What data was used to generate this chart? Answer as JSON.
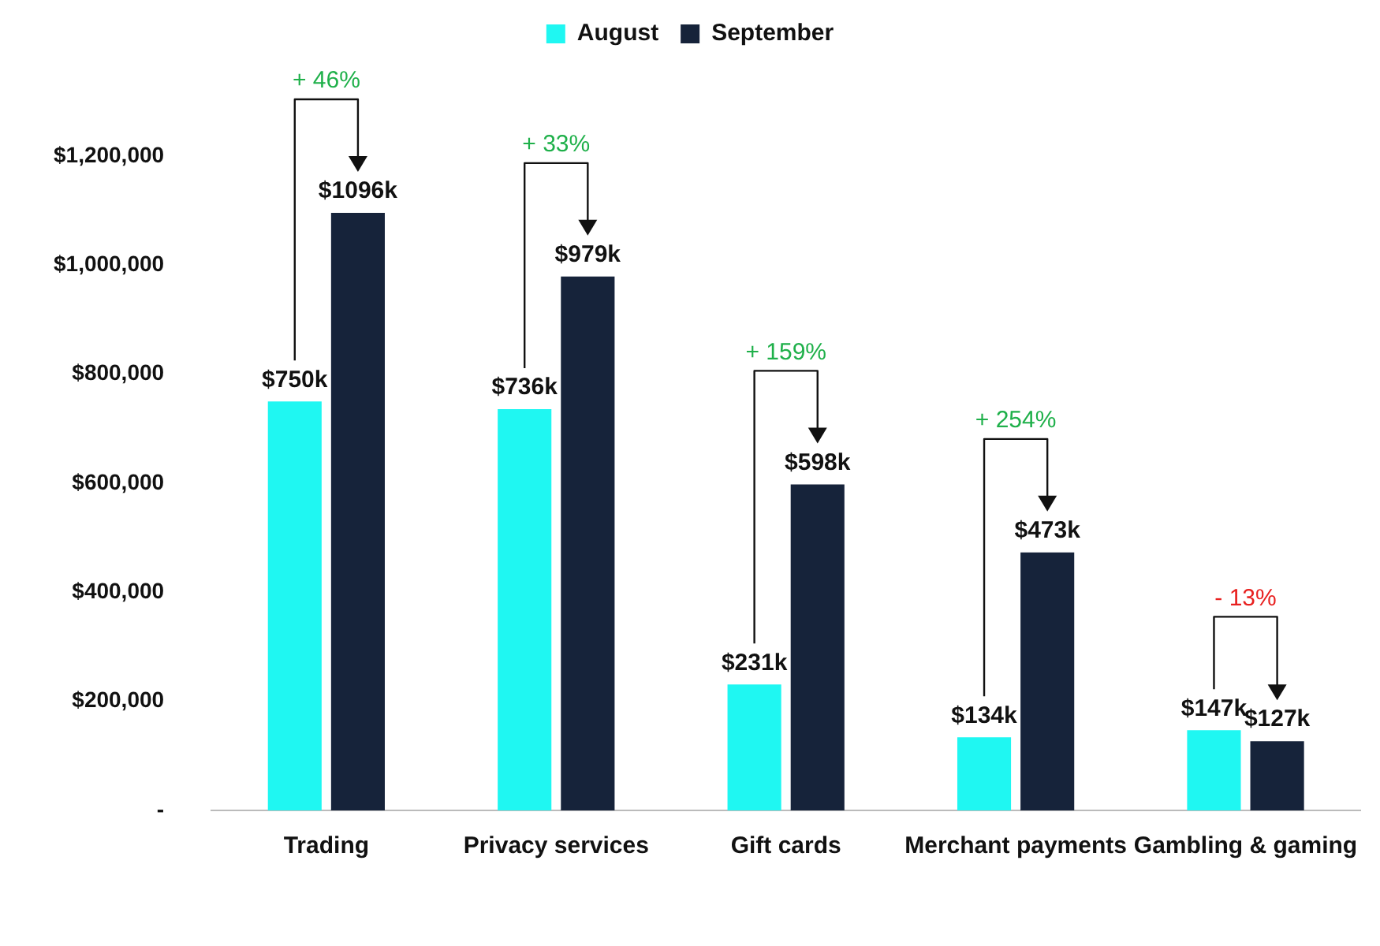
{
  "chart_data": {
    "type": "bar",
    "categories": [
      "Trading",
      "Privacy services",
      "Gift cards",
      "Merchant payments",
      "Gambling & gaming"
    ],
    "series": [
      {
        "name": "August",
        "color": "#1ff7f2",
        "values": [
          750000,
          736000,
          231000,
          134000,
          147000
        ],
        "value_labels": [
          "$750k",
          "$736k",
          "$231k",
          "$134k",
          "$147k"
        ]
      },
      {
        "name": "September",
        "color": "#16233a",
        "values": [
          1096000,
          979000,
          598000,
          473000,
          127000
        ],
        "value_labels": [
          "$1096k",
          "$979k",
          "$598k",
          "$473k",
          "$127k"
        ]
      }
    ],
    "ylim": [
      0,
      1200000
    ],
    "yticks": [
      {
        "value": 0,
        "label": "-"
      },
      {
        "value": 200000,
        "label": "$200,000"
      },
      {
        "value": 400000,
        "label": "$400,000"
      },
      {
        "value": 600000,
        "label": "$600,000"
      },
      {
        "value": 800000,
        "label": "$800,000"
      },
      {
        "value": 1000000,
        "label": "$1,000,000"
      },
      {
        "value": 1200000,
        "label": "$1,200,000"
      }
    ],
    "grid": false,
    "legend": "top",
    "annotations": [
      "+ 46%",
      "+ 33%",
      "+ 159%",
      "+ 254%",
      "- 13%"
    ]
  }
}
